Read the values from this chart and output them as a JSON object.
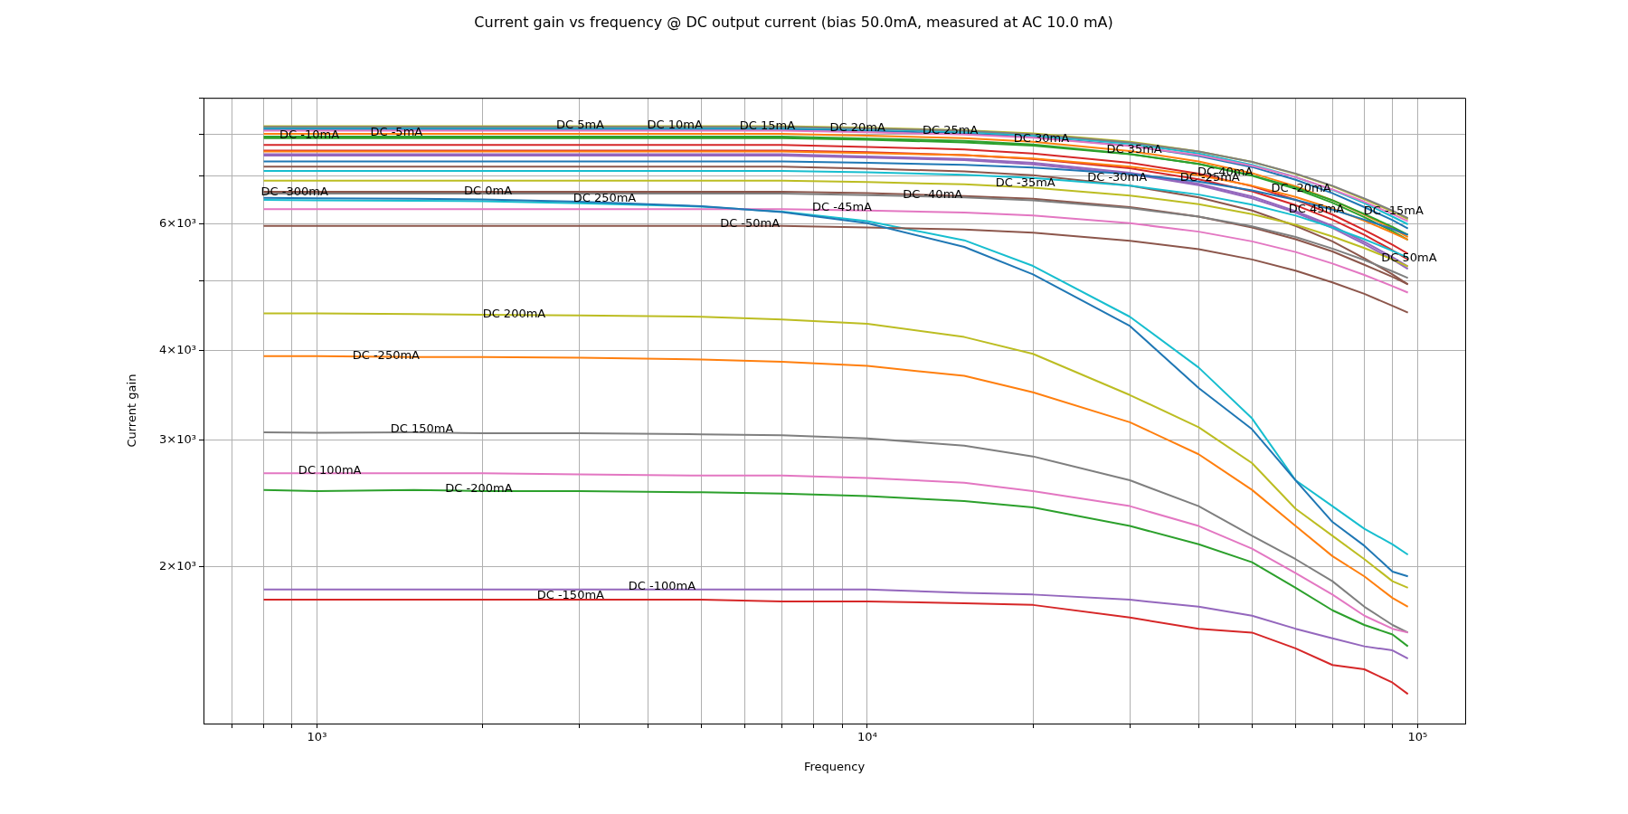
{
  "chart_data": {
    "type": "line",
    "title": "Current gain vs frequency @ DC output current (bias 50.0mA, measured at AC 10.0 mA)",
    "xlabel": "Frequency",
    "ylabel": "Current gain",
    "log": "xy",
    "grid": true,
    "legend": false,
    "marker": "none",
    "line_style": "solid",
    "xlim": [
      622,
      122000
    ],
    "ylim": [
      1210,
      9000
    ],
    "xticks": [
      {
        "value": 700,
        "label": null
      },
      {
        "value": 800,
        "label": null
      },
      {
        "value": 900,
        "label": null
      },
      {
        "value": 1000,
        "label": "10³"
      },
      {
        "value": 2000,
        "label": null
      },
      {
        "value": 3000,
        "label": null
      },
      {
        "value": 4000,
        "label": null
      },
      {
        "value": 5000,
        "label": null
      },
      {
        "value": 6000,
        "label": null
      },
      {
        "value": 7000,
        "label": null
      },
      {
        "value": 8000,
        "label": null
      },
      {
        "value": 9000,
        "label": null
      },
      {
        "value": 10000,
        "label": "10⁴"
      },
      {
        "value": 20000,
        "label": null
      },
      {
        "value": 30000,
        "label": null
      },
      {
        "value": 40000,
        "label": null
      },
      {
        "value": 50000,
        "label": null
      },
      {
        "value": 60000,
        "label": null
      },
      {
        "value": 70000,
        "label": null
      },
      {
        "value": 80000,
        "label": null
      },
      {
        "value": 90000,
        "label": null
      },
      {
        "value": 100000,
        "label": "10⁵"
      }
    ],
    "yticks": [
      {
        "value": 2000,
        "label": "2×10³"
      },
      {
        "value": 3000,
        "label": "3×10³"
      },
      {
        "value": 4000,
        "label": "4×10³"
      },
      {
        "value": 5000,
        "label": null
      },
      {
        "value": 6000,
        "label": "6×10³"
      },
      {
        "value": 7000,
        "label": null
      },
      {
        "value": 8000,
        "label": null
      },
      {
        "value": 9000,
        "label": null
      }
    ],
    "x": [
      800,
      1000,
      1500,
      2000,
      3000,
      5000,
      7000,
      10000,
      15000,
      20000,
      30000,
      40000,
      50000,
      60000,
      70000,
      80000,
      90000,
      96000
    ],
    "series": [
      {
        "color": "#1f77b4",
        "values": [
          6530,
          6520,
          6510,
          6500,
          6450,
          6360,
          6240,
          6020,
          5580,
          5110,
          4330,
          3550,
          3110,
          2640,
          2310,
          2140,
          1970,
          1940
        ]
      },
      {
        "color": "#ff7f0e",
        "values": [
          3930,
          3930,
          3920,
          3920,
          3910,
          3890,
          3860,
          3810,
          3690,
          3500,
          3180,
          2870,
          2560,
          2280,
          2070,
          1940,
          1810,
          1760
        ]
      },
      {
        "color": "#2ca02c",
        "values": [
          2560,
          2550,
          2560,
          2550,
          2550,
          2540,
          2530,
          2510,
          2470,
          2420,
          2280,
          2150,
          2030,
          1870,
          1740,
          1660,
          1610,
          1550
        ]
      },
      {
        "color": "#d62728",
        "values": [
          1800,
          1800,
          1800,
          1800,
          1800,
          1800,
          1790,
          1790,
          1780,
          1770,
          1700,
          1640,
          1620,
          1540,
          1460,
          1440,
          1380,
          1330
        ]
      },
      {
        "color": "#9467bd",
        "values": [
          1860,
          1860,
          1860,
          1860,
          1860,
          1860,
          1860,
          1860,
          1840,
          1830,
          1800,
          1760,
          1710,
          1640,
          1590,
          1550,
          1530,
          1490
        ]
      },
      {
        "color": "#8c564b",
        "values": [
          5970,
          5970,
          5970,
          5970,
          5970,
          5970,
          5970,
          5940,
          5900,
          5840,
          5690,
          5540,
          5360,
          5170,
          4980,
          4800,
          4620,
          4520
        ]
      },
      {
        "color": "#e377c2",
        "values": [
          6300,
          6300,
          6300,
          6300,
          6300,
          6300,
          6300,
          6270,
          6230,
          6170,
          6020,
          5860,
          5680,
          5490,
          5290,
          5100,
          4920,
          4820
        ]
      },
      {
        "color": "#7f7f7f",
        "values": [
          6620,
          6620,
          6620,
          6620,
          6620,
          6620,
          6620,
          6590,
          6540,
          6480,
          6320,
          6150,
          5960,
          5760,
          5550,
          5350,
          5160,
          5050
        ]
      },
      {
        "color": "#bcbd22",
        "values": [
          6900,
          6900,
          6900,
          6900,
          6900,
          6900,
          6900,
          6870,
          6820,
          6750,
          6580,
          6400,
          6200,
          5990,
          5770,
          5560,
          5360,
          5240
        ]
      },
      {
        "color": "#17becf",
        "values": [
          7120,
          7120,
          7120,
          7120,
          7120,
          7120,
          7120,
          7090,
          7030,
          6960,
          6790,
          6600,
          6390,
          6170,
          5940,
          5720,
          5510,
          5390
        ]
      },
      {
        "color": "#1f77b4",
        "values": [
          7340,
          7340,
          7340,
          7340,
          7340,
          7340,
          7340,
          7310,
          7260,
          7200,
          7050,
          6880,
          6690,
          6490,
          6290,
          6090,
          5910,
          5800
        ]
      },
      {
        "color": "#ff7f0e",
        "values": [
          7580,
          7580,
          7580,
          7580,
          7580,
          7580,
          7580,
          7540,
          7490,
          7410,
          7220,
          7020,
          6790,
          6550,
          6310,
          6070,
          5840,
          5710
        ]
      },
      {
        "color": "#2ca02c",
        "values": [
          7910,
          7910,
          7910,
          7910,
          7910,
          7910,
          7910,
          7870,
          7800,
          7720,
          7510,
          7280,
          7020,
          6750,
          6480,
          6200,
          5950,
          5800
        ]
      },
      {
        "color": "#d62728",
        "values": [
          7740,
          7740,
          7740,
          7740,
          7740,
          7740,
          7740,
          7690,
          7630,
          7530,
          7310,
          7060,
          6780,
          6490,
          6190,
          5890,
          5620,
          5460
        ]
      },
      {
        "color": "#9467bd",
        "values": [
          7510,
          7510,
          7510,
          7510,
          7510,
          7510,
          7510,
          7460,
          7400,
          7310,
          7080,
          6830,
          6560,
          6260,
          5970,
          5670,
          5400,
          5240
        ]
      },
      {
        "color": "#8c564b",
        "values": [
          6660,
          6660,
          6660,
          6660,
          6660,
          6660,
          6660,
          6630,
          6570,
          6510,
          6340,
          6150,
          5940,
          5720,
          5500,
          5270,
          5070,
          4950
        ]
      },
      {
        "color": "#e377c2",
        "values": [
          8100,
          8100,
          8100,
          8100,
          8100,
          8100,
          8100,
          8060,
          8000,
          7920,
          7710,
          7490,
          7240,
          6980,
          6710,
          6450,
          6200,
          6060
        ]
      },
      {
        "color": "#7f7f7f",
        "values": [
          8200,
          8200,
          8200,
          8200,
          8200,
          8200,
          8200,
          8160,
          8100,
          8010,
          7800,
          7580,
          7330,
          7060,
          6790,
          6520,
          6270,
          6120
        ]
      },
      {
        "color": "#bcbd22",
        "values": [
          8220,
          8220,
          8220,
          8220,
          8220,
          8220,
          8220,
          8180,
          8110,
          8030,
          7820,
          7580,
          7330,
          7050,
          6780,
          6500,
          6250,
          6100
        ]
      },
      {
        "color": "#17becf",
        "values": [
          8180,
          8180,
          8180,
          8180,
          8180,
          8180,
          8180,
          8140,
          8070,
          7980,
          7770,
          7530,
          7260,
          6980,
          6700,
          6420,
          6150,
          6000
        ]
      },
      {
        "color": "#1f77b4",
        "values": [
          8140,
          8140,
          8140,
          8140,
          8140,
          8140,
          8140,
          8100,
          8030,
          7940,
          7720,
          7470,
          7210,
          6920,
          6630,
          6340,
          6080,
          5920
        ]
      },
      {
        "color": "#ff7f0e",
        "values": [
          8020,
          8020,
          8020,
          8020,
          8020,
          8020,
          8020,
          7970,
          7910,
          7820,
          7590,
          7340,
          7070,
          6780,
          6480,
          6190,
          5920,
          5760
        ]
      },
      {
        "color": "#2ca02c",
        "values": [
          7950,
          7950,
          7950,
          7950,
          7950,
          7950,
          7950,
          7900,
          7840,
          7750,
          7520,
          7280,
          7010,
          6720,
          6430,
          6140,
          5870,
          5710
        ]
      },
      {
        "color": "#d62728",
        "values": [
          7600,
          7600,
          7600,
          7600,
          7600,
          7600,
          7600,
          7560,
          7490,
          7400,
          7180,
          6930,
          6670,
          6380,
          6090,
          5800,
          5520,
          5360
        ]
      },
      {
        "color": "#9467bd",
        "values": [
          7480,
          7480,
          7480,
          7480,
          7480,
          7480,
          7480,
          7430,
          7370,
          7270,
          7050,
          6800,
          6520,
          6230,
          5930,
          5630,
          5360,
          5200
        ]
      },
      {
        "color": "#8c564b",
        "values": [
          7220,
          7220,
          7220,
          7220,
          7220,
          7220,
          7220,
          7170,
          7110,
          7020,
          6790,
          6540,
          6270,
          5970,
          5680,
          5380,
          5110,
          4950
        ]
      },
      {
        "color": "#e377c2",
        "values": [
          2700,
          2700,
          2700,
          2700,
          2690,
          2680,
          2680,
          2660,
          2620,
          2550,
          2430,
          2280,
          2120,
          1960,
          1830,
          1710,
          1640,
          1620
        ]
      },
      {
        "color": "#7f7f7f",
        "values": [
          3080,
          3075,
          3080,
          3070,
          3070,
          3060,
          3050,
          3020,
          2950,
          2850,
          2640,
          2430,
          2210,
          2050,
          1910,
          1760,
          1660,
          1620
        ]
      },
      {
        "color": "#bcbd22",
        "values": [
          4510,
          4510,
          4500,
          4490,
          4480,
          4460,
          4420,
          4360,
          4180,
          3960,
          3470,
          3130,
          2790,
          2410,
          2210,
          2050,
          1910,
          1870
        ]
      },
      {
        "color": "#17becf",
        "values": [
          6490,
          6480,
          6470,
          6460,
          6420,
          6350,
          6250,
          6060,
          5700,
          5250,
          4460,
          3790,
          3220,
          2640,
          2430,
          2260,
          2150,
          2080
        ]
      }
    ],
    "annotations": [
      {
        "text": "DC -300mA",
        "x": 791,
        "y": 6650
      },
      {
        "text": "DC -250mA",
        "x": 1160,
        "y": 3930
      },
      {
        "text": "DC -200mA",
        "x": 1710,
        "y": 2570
      },
      {
        "text": "DC -150mA",
        "x": 2510,
        "y": 1824
      },
      {
        "text": "DC -100mA",
        "x": 3680,
        "y": 1875
      },
      {
        "text": "DC -50mA",
        "x": 5400,
        "y": 6000
      },
      {
        "text": "DC -45mA",
        "x": 7940,
        "y": 6320
      },
      {
        "text": "DC -40mA",
        "x": 11600,
        "y": 6600
      },
      {
        "text": "DC -35mA",
        "x": 17100,
        "y": 6850
      },
      {
        "text": "DC -30mA",
        "x": 25100,
        "y": 6960
      },
      {
        "text": "DC -25mA",
        "x": 37000,
        "y": 6960
      },
      {
        "text": "DC -20mA",
        "x": 54200,
        "y": 6730
      },
      {
        "text": "DC -15mA",
        "x": 79800,
        "y": 6260
      },
      {
        "text": "DC -10mA",
        "x": 855,
        "y": 7980
      },
      {
        "text": "DC -5mA",
        "x": 1250,
        "y": 8060
      },
      {
        "text": "DC 0mA",
        "x": 1850,
        "y": 6660
      },
      {
        "text": "DC 5mA",
        "x": 2720,
        "y": 8250
      },
      {
        "text": "DC 10mA",
        "x": 3980,
        "y": 8250
      },
      {
        "text": "DC 15mA",
        "x": 5860,
        "y": 8220
      },
      {
        "text": "DC 20mA",
        "x": 8550,
        "y": 8170
      },
      {
        "text": "DC 25mA",
        "x": 12600,
        "y": 8100
      },
      {
        "text": "DC 30mA",
        "x": 18450,
        "y": 7900
      },
      {
        "text": "DC 35mA",
        "x": 27200,
        "y": 7620
      },
      {
        "text": "DC 40mA",
        "x": 39800,
        "y": 7080
      },
      {
        "text": "DC 45mA",
        "x": 58300,
        "y": 6300
      },
      {
        "text": "DC 50mA",
        "x": 85900,
        "y": 5380
      },
      {
        "text": "DC 100mA",
        "x": 925,
        "y": 2720
      },
      {
        "text": "DC 150mA",
        "x": 1360,
        "y": 3105
      },
      {
        "text": "DC 200mA",
        "x": 2000,
        "y": 4490
      },
      {
        "text": "DC 250mA",
        "x": 2920,
        "y": 6520
      }
    ]
  }
}
